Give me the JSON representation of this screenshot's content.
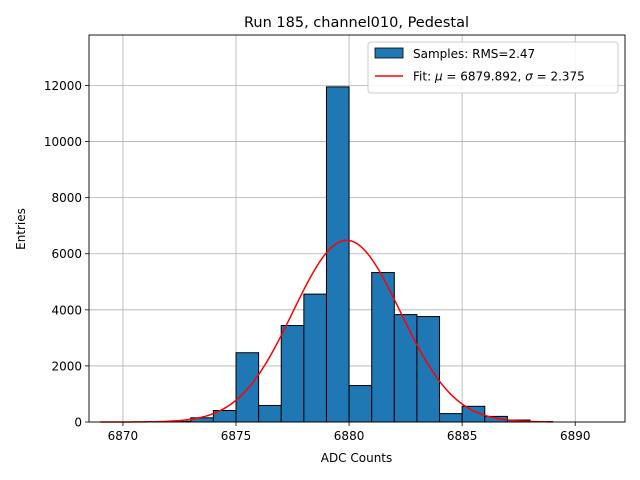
{
  "chart_data": {
    "type": "bar",
    "title": "Run 185, channel010, Pedestal",
    "xlabel": "ADC Counts",
    "ylabel": "Entries",
    "xlim": [
      6868.5,
      6892.2
    ],
    "ylim": [
      0,
      13800
    ],
    "grid": true,
    "legend_position": "top-right",
    "xticks": [
      6870,
      6875,
      6880,
      6885,
      6890
    ],
    "yticks": [
      0,
      2000,
      4000,
      6000,
      8000,
      10000,
      12000
    ],
    "bin_width": 1,
    "bins": [
      {
        "left": 6871,
        "value": 8
      },
      {
        "left": 6872,
        "value": 25
      },
      {
        "left": 6873,
        "value": 150
      },
      {
        "left": 6874,
        "value": 410
      },
      {
        "left": 6875,
        "value": 2470
      },
      {
        "left": 6876,
        "value": 590
      },
      {
        "left": 6877,
        "value": 3440
      },
      {
        "left": 6878,
        "value": 4560
      },
      {
        "left": 6879,
        "value": 11950
      },
      {
        "left": 6880,
        "value": 1300
      },
      {
        "left": 6881,
        "value": 5330
      },
      {
        "left": 6882,
        "value": 3830
      },
      {
        "left": 6883,
        "value": 3760
      },
      {
        "left": 6884,
        "value": 300
      },
      {
        "left": 6885,
        "value": 560
      },
      {
        "left": 6886,
        "value": 200
      },
      {
        "left": 6887,
        "value": 70
      },
      {
        "left": 6888,
        "value": 15
      }
    ],
    "fit": {
      "mu": 6879.892,
      "sigma": 2.375,
      "amplitude": 6480,
      "x_range": [
        6869,
        6889
      ]
    },
    "legend": {
      "samples_label": "Samples: RMS=2.47",
      "fit_label_prefix": "Fit: ",
      "fit_mu_symbol": "μ",
      "fit_mu_value": " = 6879.892, ",
      "fit_sigma_symbol": "σ",
      "fit_sigma_value": " = 2.375"
    },
    "colors": {
      "bar_fill": "#1f77b4",
      "bar_edge": "#000000",
      "fit_line": "#ff0000",
      "grid": "#b0b0b0"
    }
  }
}
